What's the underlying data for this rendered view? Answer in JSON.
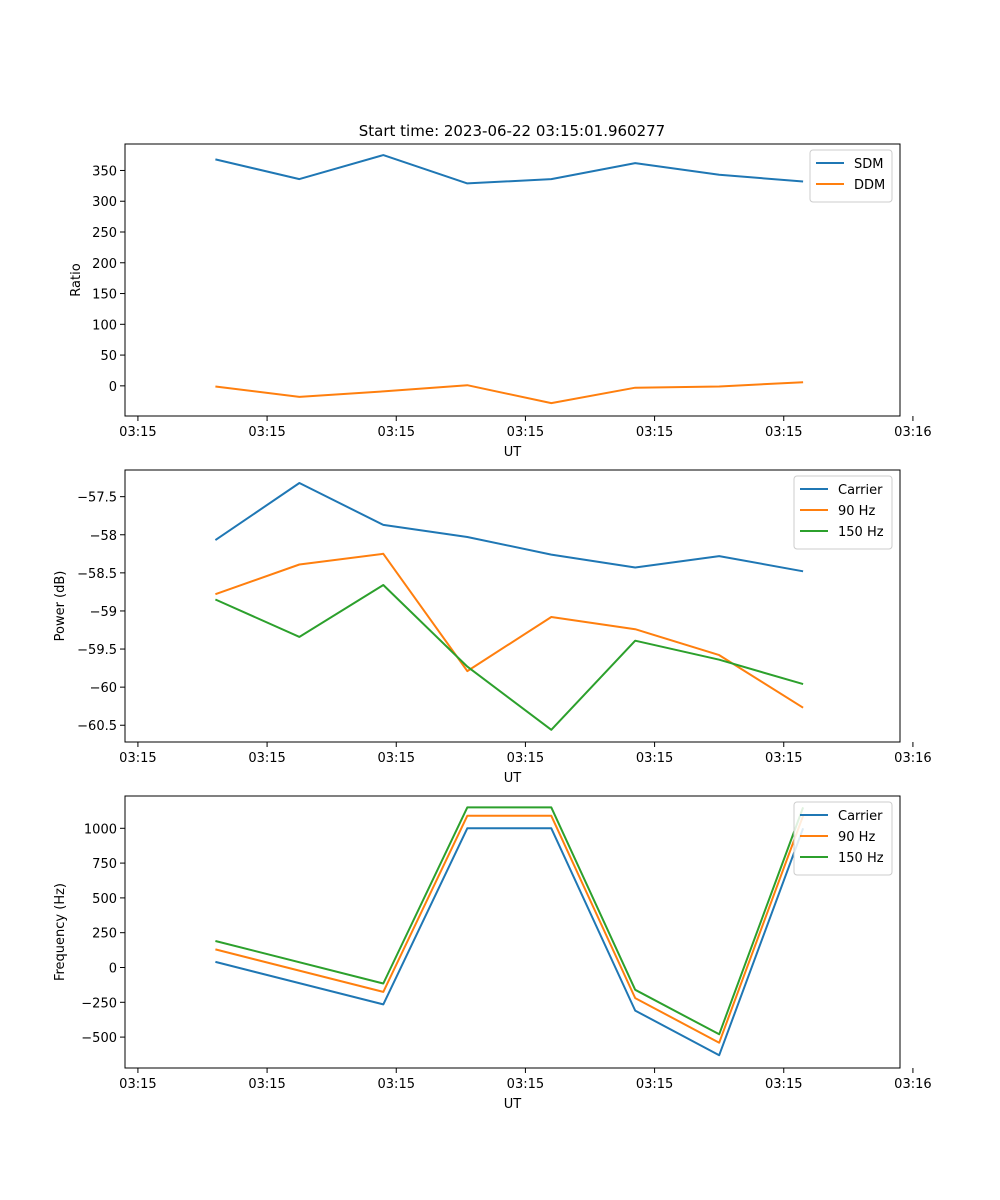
{
  "figure_title": "Start time: 2023-06-22 03:15:01.960277",
  "chart_data": [
    {
      "type": "line",
      "xlabel": "UT",
      "ylabel": "Ratio",
      "x_tick_labels": [
        "03:15",
        "03:15",
        "03:15",
        "03:15",
        "03:15",
        "03:15",
        "03:16"
      ],
      "ylim": [
        -49,
        393
      ],
      "yticks": [
        0,
        50,
        100,
        150,
        200,
        250,
        300,
        350
      ],
      "grid": false,
      "legend": "top-right",
      "x": [
        1.6,
        2.25,
        2.9,
        3.55,
        4.2,
        4.85,
        5.5,
        6.15
      ],
      "xlim": [
        0.9,
        6.9
      ],
      "series": [
        {
          "name": "SDM",
          "color": "#1f77b4",
          "values": [
            368,
            336,
            375,
            329,
            336,
            362,
            343,
            332
          ]
        },
        {
          "name": "DDM",
          "color": "#ff7f0e",
          "values": [
            -1,
            -18,
            -9,
            1,
            -28,
            -3,
            -1,
            6
          ]
        }
      ]
    },
    {
      "type": "line",
      "xlabel": "UT",
      "ylabel": "Power (dB)",
      "x_tick_labels": [
        "03:15",
        "03:15",
        "03:15",
        "03:15",
        "03:15",
        "03:15",
        "03:16"
      ],
      "ylim": [
        -60.72,
        -57.15
      ],
      "yticks": [
        -57.5,
        -58.0,
        -58.5,
        -59.0,
        -59.5,
        -60.0,
        -60.5
      ],
      "grid": false,
      "legend": "top-right",
      "x": [
        1.6,
        2.25,
        2.9,
        3.55,
        4.2,
        4.85,
        5.5,
        6.15
      ],
      "xlim": [
        0.9,
        6.9
      ],
      "series": [
        {
          "name": "Carrier",
          "color": "#1f77b4",
          "values": [
            -58.07,
            -57.32,
            -57.87,
            -58.03,
            -58.26,
            -58.43,
            -58.28,
            -58.48
          ]
        },
        {
          "name": "90 Hz",
          "color": "#ff7f0e",
          "values": [
            -58.78,
            -58.39,
            -58.25,
            -59.79,
            -59.08,
            -59.24,
            -59.58,
            -60.27
          ]
        },
        {
          "name": "150 Hz",
          "color": "#2ca02c",
          "values": [
            -58.85,
            -59.34,
            -58.66,
            -59.73,
            -60.56,
            -59.39,
            -59.64,
            -59.96
          ]
        }
      ]
    },
    {
      "type": "line",
      "xlabel": "UT",
      "ylabel": "Frequency (Hz)",
      "x_tick_labels": [
        "03:15",
        "03:15",
        "03:15",
        "03:15",
        "03:15",
        "03:15",
        "03:16"
      ],
      "ylim": [
        -722,
        1232
      ],
      "yticks": [
        1000,
        750,
        500,
        250,
        0,
        -250,
        -500
      ],
      "grid": false,
      "legend": "top-right",
      "x": [
        1.6,
        2.25,
        2.9,
        3.55,
        4.2,
        4.85,
        5.5,
        6.15
      ],
      "xlim": [
        0.9,
        6.9
      ],
      "series": [
        {
          "name": "Carrier",
          "color": "#1f77b4",
          "values": [
            40,
            null,
            -265,
            1000,
            1000,
            -310,
            -630,
            1000
          ]
        },
        {
          "name": "90 Hz",
          "color": "#ff7f0e",
          "values": [
            130,
            null,
            -175,
            1090,
            1090,
            -220,
            -540,
            1090
          ]
        },
        {
          "name": "150 Hz",
          "color": "#2ca02c",
          "values": [
            190,
            null,
            -115,
            1150,
            1150,
            -160,
            -480,
            1150
          ]
        }
      ]
    }
  ]
}
